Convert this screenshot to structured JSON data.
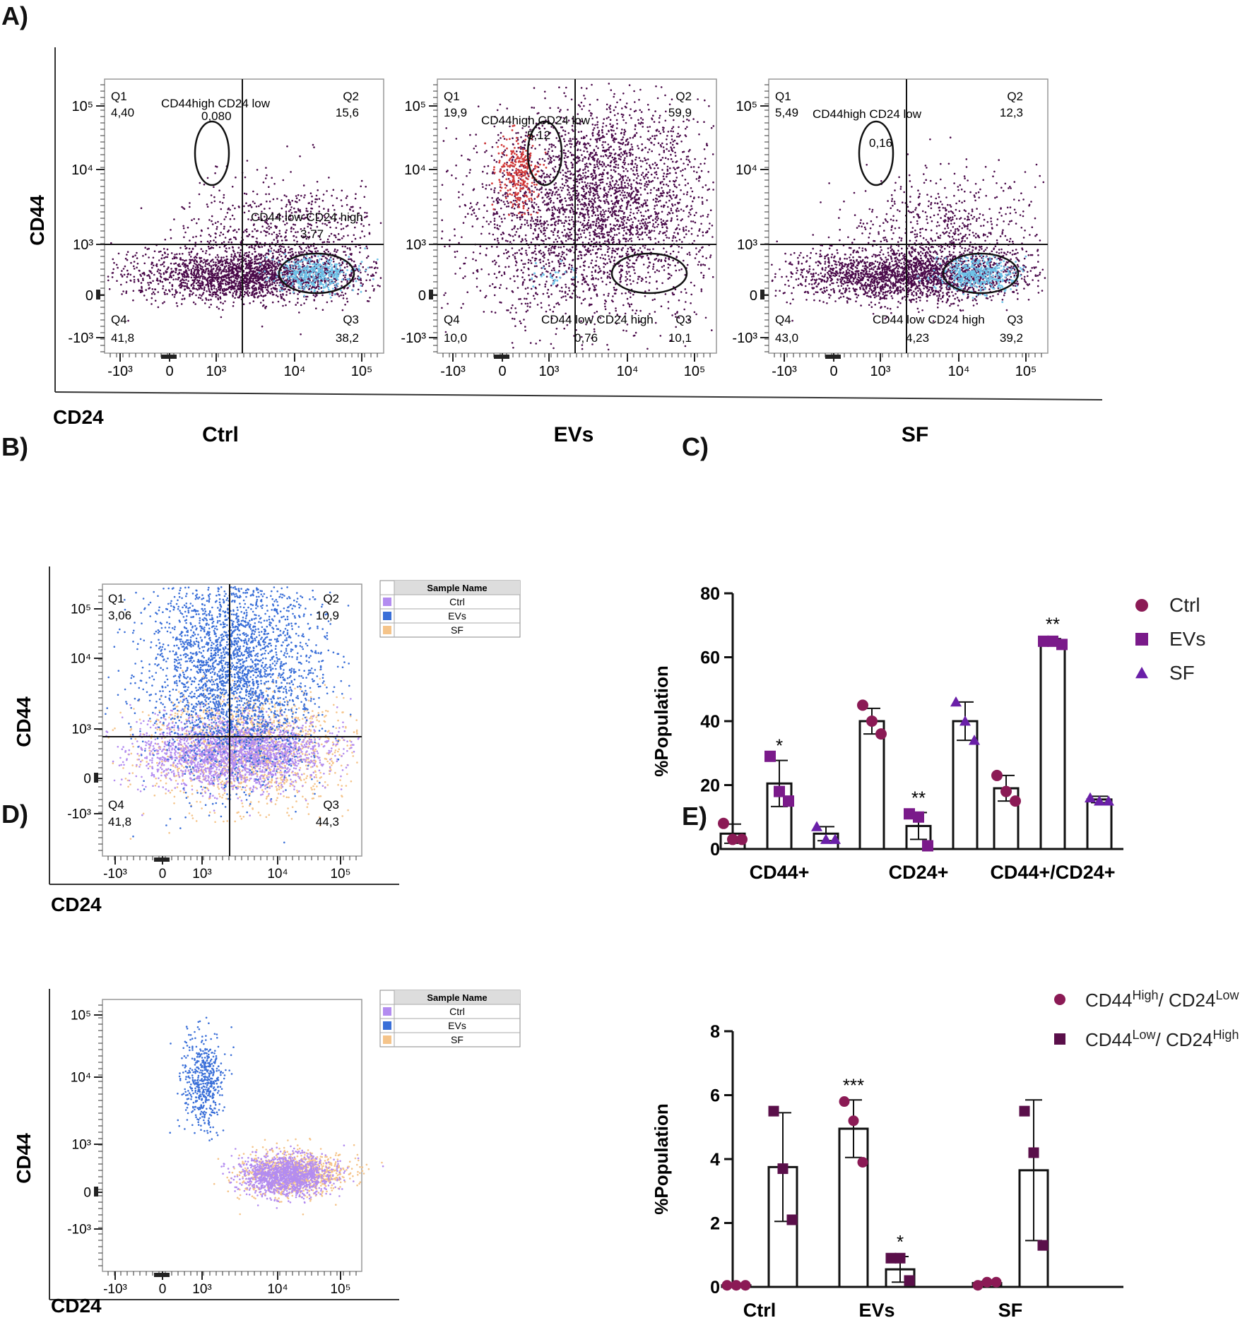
{
  "panel_labels": {
    "A": "A)",
    "B": "B)",
    "C": "C)",
    "D": "D)",
    "E": "E)"
  },
  "colors": {
    "ctrl_dot": "#8b1a55",
    "evs_marker": "#7a1a8a",
    "sf_marker": "#6a1fa8",
    "e_high": "#8b1a55",
    "e_low": "#5a0f4a",
    "flow_population": "#4a0a4a",
    "flow_gate_q3": "#6fc3e8",
    "flow_gate_red": "#d23a3a",
    "overlay_ctrl": "#b38cf0",
    "overlay_evs": "#3a6fd8",
    "overlay_sf": "#f5c48a"
  },
  "axes_text": {
    "y_label": "CD44",
    "x_label": "CD24",
    "x_ticks": [
      "-10³",
      "0",
      "10³",
      "10⁴",
      "10⁵"
    ],
    "y_ticks": [
      "10⁵",
      "10⁴",
      "10³",
      "0",
      "-10³"
    ]
  },
  "panel_a": {
    "plots": [
      {
        "name": "Ctrl",
        "q1": {
          "label": "Q1",
          "value": "4,40"
        },
        "q2": {
          "label": "Q2",
          "value": "15,6"
        },
        "q3": {
          "label": "Q3",
          "value": "38,2"
        },
        "q4": {
          "label": "Q4",
          "value": "41,8"
        },
        "gate_high_label": "CD44high CD24 low",
        "gate_high_value": "0,080",
        "gate_low_label": "CD44 low CD24 high",
        "gate_low_value": "3,77"
      },
      {
        "name": "EVs",
        "q1": {
          "label": "Q1",
          "value": "19,9"
        },
        "q2": {
          "label": "Q2",
          "value": "59,9"
        },
        "q3": {
          "label": "Q3",
          "value": "10,1"
        },
        "q4": {
          "label": "Q4",
          "value": "10,0"
        },
        "gate_high_label": "CD44high CD24 low",
        "gate_high_value": "5,12",
        "gate_low_label": "CD44 low CD24 high",
        "gate_low_value": "0,76"
      },
      {
        "name": "SF",
        "q1": {
          "label": "Q1",
          "value": "5,49"
        },
        "q2": {
          "label": "Q2",
          "value": "12,3"
        },
        "q3": {
          "label": "Q3",
          "value": "39,2"
        },
        "q4": {
          "label": "Q4",
          "value": "43,0"
        },
        "gate_high_label": "CD44high CD24 low",
        "gate_high_value": "0,16",
        "gate_low_label": "CD44 low CD24 high",
        "gate_low_value": "4,23"
      }
    ]
  },
  "panel_b": {
    "q1": {
      "label": "Q1",
      "value": "3,06"
    },
    "q2": {
      "label": "Q2",
      "value": "10,9"
    },
    "q3": {
      "label": "Q3",
      "value": "44,3"
    },
    "q4": {
      "label": "Q4",
      "value": "41,8"
    },
    "legend_header": "Sample Name",
    "legend": [
      "Ctrl",
      "EVs",
      "SF"
    ]
  },
  "panel_d": {
    "legend_header": "Sample Name",
    "legend": [
      "Ctrl",
      "EVs",
      "SF"
    ]
  },
  "chart_data": [
    {
      "id": "C",
      "type": "bar",
      "title": "",
      "xlabel": "",
      "ylabel": "%Population",
      "ylim": [
        0,
        80
      ],
      "yticks": [
        0,
        20,
        40,
        60,
        80
      ],
      "categories": [
        "CD44+",
        "CD24+",
        "CD44+/CD24+"
      ],
      "series": [
        {
          "name": "Ctrl",
          "marker": "circle",
          "values": [
            4.8,
            40,
            19
          ],
          "errors": [
            3,
            4,
            4
          ],
          "points": [
            [
              8,
              3,
              3
            ],
            [
              45,
              40,
              36
            ],
            [
              23,
              18,
              15
            ]
          ],
          "sig": [
            "",
            "",
            ""
          ]
        },
        {
          "name": "EVs",
          "marker": "square",
          "values": [
            20.5,
            7.2,
            65
          ],
          "errors": [
            7.2,
            4.2,
            0.8
          ],
          "points": [
            [
              29,
              18,
              15
            ],
            [
              11,
              10,
              1
            ],
            [
              65,
              65,
              64
            ]
          ],
          "sig": [
            "*",
            "**",
            "**"
          ]
        },
        {
          "name": "SF",
          "marker": "triangle",
          "values": [
            4.8,
            40,
            15.5
          ],
          "errors": [
            2.2,
            6,
            1
          ],
          "points": [
            [
              7,
              3,
              3
            ],
            [
              46,
              40,
              34
            ],
            [
              16,
              15,
              15
            ]
          ],
          "sig": [
            "",
            "",
            ""
          ]
        }
      ]
    },
    {
      "id": "E",
      "type": "bar",
      "title": "",
      "xlabel": "",
      "ylabel": "%Population",
      "ylim": [
        0,
        8
      ],
      "yticks": [
        0,
        2,
        4,
        6,
        8
      ],
      "categories": [
        "Ctrl",
        "EVs",
        "SF"
      ],
      "series": [
        {
          "name": "CD44High/ CD24Low",
          "base": "CD44",
          "sup1": "High",
          "mid": "/ CD24",
          "sup2": "Low",
          "marker": "circle",
          "values": [
            0.05,
            4.95,
            0.12
          ],
          "errors": [
            0,
            0.9,
            0.05
          ],
          "points": [
            [
              0.05,
              0.05,
              0.05
            ],
            [
              5.8,
              5.2,
              3.9
            ],
            [
              0.05,
              0.15,
              0.15
            ]
          ],
          "sig": [
            "",
            "***",
            ""
          ]
        },
        {
          "name": "CD44Low/ CD24High",
          "base": "CD44",
          "sup1": "Low",
          "mid": "/ CD24",
          "sup2": "High",
          "marker": "square",
          "values": [
            3.75,
            0.55,
            3.65
          ],
          "errors": [
            1.7,
            0.4,
            2.2
          ],
          "points": [
            [
              5.5,
              3.7,
              2.1
            ],
            [
              0.9,
              0.9,
              0.2
            ],
            [
              5.5,
              4.2,
              1.3
            ]
          ],
          "sig": [
            "",
            "*",
            ""
          ]
        }
      ]
    }
  ]
}
